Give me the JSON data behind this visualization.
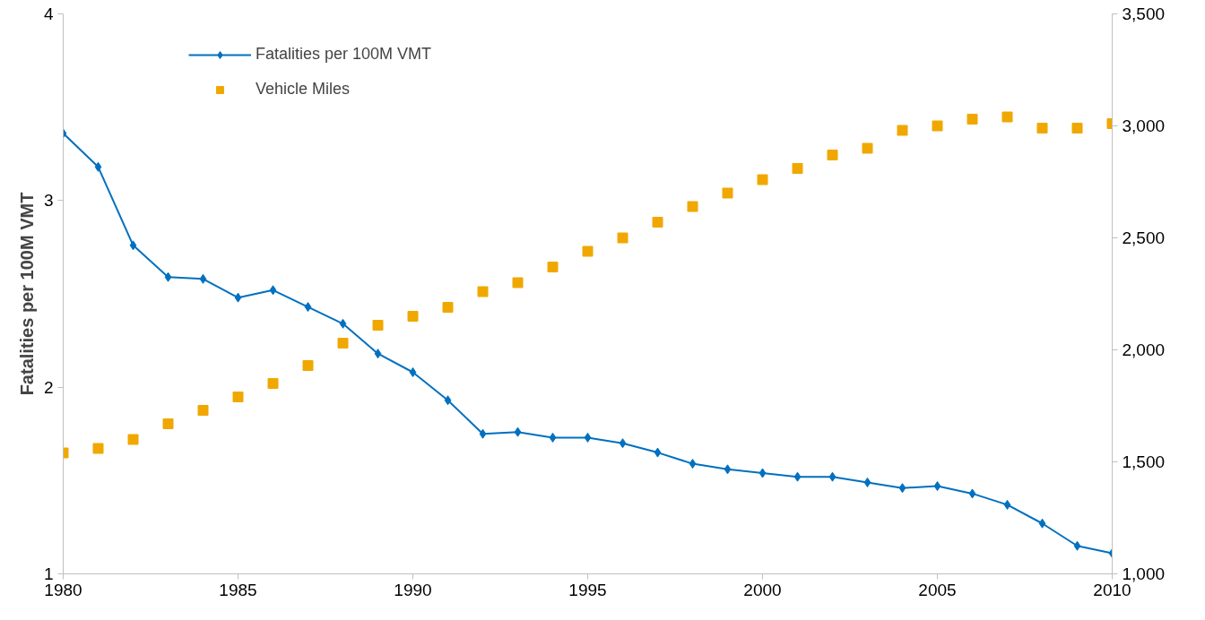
{
  "chart_data": {
    "type": "line",
    "ylabel": "Fatalities per 100M VMT",
    "x": [
      1980,
      1981,
      1982,
      1983,
      1984,
      1985,
      1986,
      1987,
      1988,
      1989,
      1990,
      1991,
      1992,
      1993,
      1994,
      1995,
      1996,
      1997,
      1998,
      1999,
      2000,
      2001,
      2002,
      2003,
      2004,
      2005,
      2006,
      2007,
      2008,
      2009,
      2010
    ],
    "series": [
      {
        "name": "Fatalities per 100M VMT",
        "color": "#0070c0",
        "marker": "diamond",
        "values": [
          3.36,
          3.18,
          2.76,
          2.59,
          2.58,
          2.48,
          2.52,
          2.43,
          2.34,
          2.18,
          2.08,
          1.93,
          1.75,
          1.76,
          1.73,
          1.73,
          1.7,
          1.65,
          1.59,
          1.56,
          1.54,
          1.52,
          1.52,
          1.49,
          1.46,
          1.47,
          1.43,
          1.37,
          1.27,
          1.15,
          1.11
        ]
      },
      {
        "name": "Vehicle Miles",
        "type": "scatter",
        "axis": "y2",
        "color": "#f0a800",
        "marker": "square",
        "values": [
          1540,
          1560,
          1600,
          1670,
          1730,
          1790,
          1850,
          1930,
          2030,
          2110,
          2150,
          2190,
          2260,
          2300,
          2370,
          2440,
          2500,
          2570,
          2640,
          2700,
          2760,
          2810,
          2870,
          2900,
          2980,
          3000,
          3030,
          3040,
          2990,
          2990,
          3010
        ]
      }
    ],
    "xlim": [
      1980,
      2010
    ],
    "xticks": [
      1980,
      1985,
      1990,
      1995,
      2000,
      2005,
      2010
    ],
    "ylim": [
      1,
      4
    ],
    "yticks": [
      1,
      2,
      3,
      4
    ],
    "y2lim": [
      1000,
      3500
    ],
    "y2ticks": [
      {
        "value": 1000,
        "label": "1,000"
      },
      {
        "value": 1500,
        "label": "1,500"
      },
      {
        "value": 2000,
        "label": "2,000"
      },
      {
        "value": 2500,
        "label": "2,500"
      },
      {
        "value": 3000,
        "label": "3,000"
      },
      {
        "value": 3500,
        "label": "3,500"
      }
    ],
    "grid": false,
    "legend": "top left"
  }
}
